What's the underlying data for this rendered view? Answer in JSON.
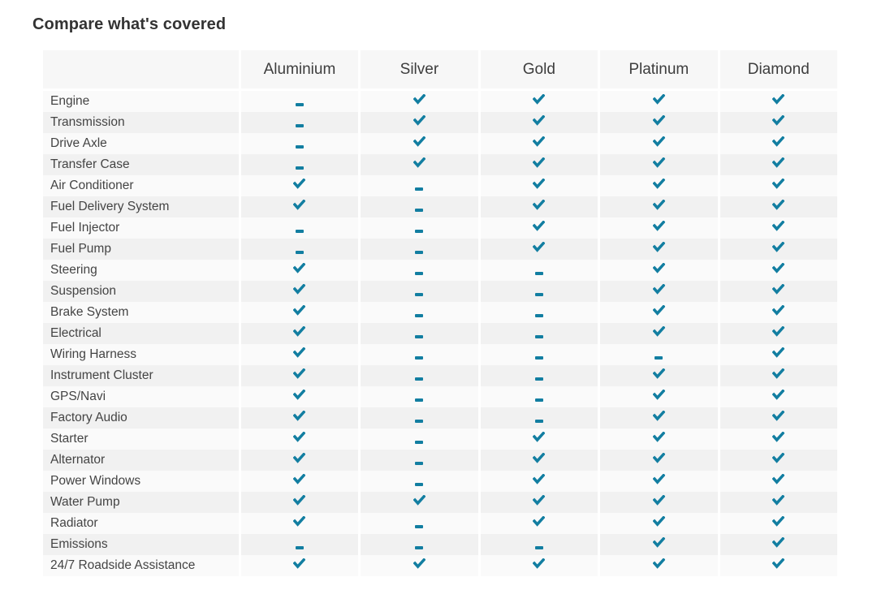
{
  "title": "Compare what's covered",
  "colors": {
    "accent": "#127ea1",
    "header_bg": "#f7f7f7",
    "row_light": "#fafafa",
    "row_dark": "#f1f1f1"
  },
  "table": {
    "columns": [
      "",
      "Aluminium",
      "Silver",
      "Gold",
      "Platinum",
      "Diamond"
    ],
    "value_legend": {
      "check": "covered",
      "dash": "not covered"
    },
    "rows": [
      {
        "label": "Engine",
        "values": [
          "dash",
          "check",
          "check",
          "check",
          "check"
        ]
      },
      {
        "label": "Transmission",
        "values": [
          "dash",
          "check",
          "check",
          "check",
          "check"
        ]
      },
      {
        "label": "Drive Axle",
        "values": [
          "dash",
          "check",
          "check",
          "check",
          "check"
        ]
      },
      {
        "label": "Transfer Case",
        "values": [
          "dash",
          "check",
          "check",
          "check",
          "check"
        ]
      },
      {
        "label": "Air Conditioner",
        "values": [
          "check",
          "dash",
          "check",
          "check",
          "check"
        ]
      },
      {
        "label": "Fuel Delivery System",
        "values": [
          "check",
          "dash",
          "check",
          "check",
          "check"
        ]
      },
      {
        "label": "Fuel Injector",
        "values": [
          "dash",
          "dash",
          "check",
          "check",
          "check"
        ]
      },
      {
        "label": "Fuel Pump",
        "values": [
          "dash",
          "dash",
          "check",
          "check",
          "check"
        ]
      },
      {
        "label": "Steering",
        "values": [
          "check",
          "dash",
          "dash",
          "check",
          "check"
        ]
      },
      {
        "label": "Suspension",
        "values": [
          "check",
          "dash",
          "dash",
          "check",
          "check"
        ]
      },
      {
        "label": "Brake System",
        "values": [
          "check",
          "dash",
          "dash",
          "check",
          "check"
        ]
      },
      {
        "label": "Electrical",
        "values": [
          "check",
          "dash",
          "dash",
          "check",
          "check"
        ]
      },
      {
        "label": "Wiring Harness",
        "values": [
          "check",
          "dash",
          "dash",
          "dash",
          "check"
        ]
      },
      {
        "label": "Instrument Cluster",
        "values": [
          "check",
          "dash",
          "dash",
          "check",
          "check"
        ]
      },
      {
        "label": "GPS/Navi",
        "values": [
          "check",
          "dash",
          "dash",
          "check",
          "check"
        ]
      },
      {
        "label": "Factory Audio",
        "values": [
          "check",
          "dash",
          "dash",
          "check",
          "check"
        ]
      },
      {
        "label": "Starter",
        "values": [
          "check",
          "dash",
          "check",
          "check",
          "check"
        ]
      },
      {
        "label": "Alternator",
        "values": [
          "check",
          "dash",
          "check",
          "check",
          "check"
        ]
      },
      {
        "label": "Power Windows",
        "values": [
          "check",
          "dash",
          "check",
          "check",
          "check"
        ]
      },
      {
        "label": "Water Pump",
        "values": [
          "check",
          "check",
          "check",
          "check",
          "check"
        ]
      },
      {
        "label": "Radiator",
        "values": [
          "check",
          "dash",
          "check",
          "check",
          "check"
        ]
      },
      {
        "label": "Emissions",
        "values": [
          "dash",
          "dash",
          "dash",
          "check",
          "check"
        ]
      },
      {
        "label": "24/7 Roadside Assistance",
        "values": [
          "check",
          "check",
          "check",
          "check",
          "check"
        ]
      }
    ]
  }
}
